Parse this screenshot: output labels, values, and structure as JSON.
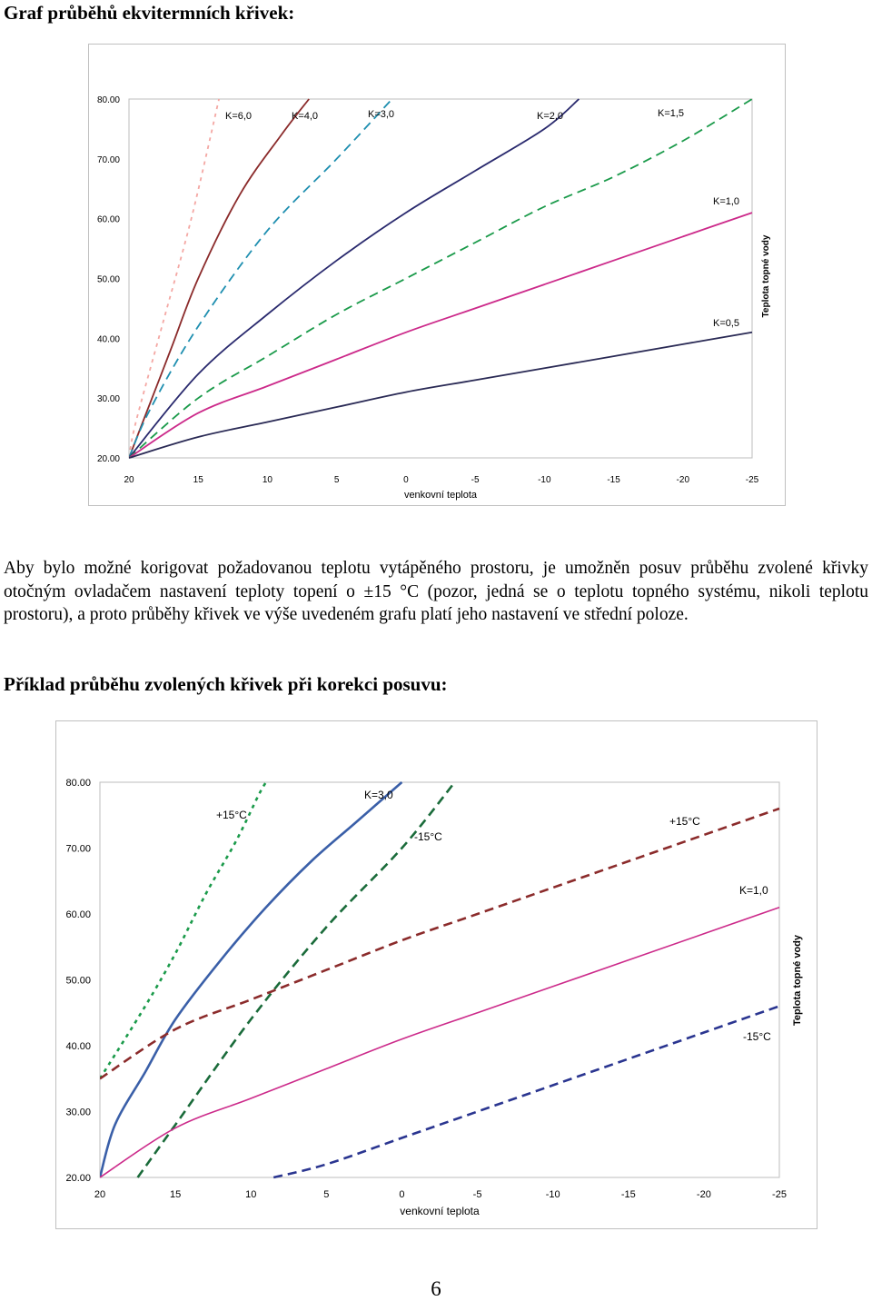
{
  "headings": {
    "chart1_title": "Graf průběhů ekvitermních křivek:",
    "chart2_title": "Příklad průběhu zvolených křivek při korekci posuvu:"
  },
  "paragraph": "Aby bylo možné korigovat požadovanou teplotu vytápěného prostoru, je umožněn posuv průběhu zvolené křivky otočným ovladačem nastavení teploty topení o ±15 °C (pozor, jedná se o teplotu topného systému, nikoli teplotu prostoru), a proto průběhy křivek ve výše uvedeném grafu platí jeho nastavení ve střední poloze.",
  "page_number": "6",
  "chart_data": [
    {
      "type": "line",
      "x": [
        20,
        15,
        10,
        5,
        0,
        -5,
        -10,
        -15,
        -20,
        -25
      ],
      "xlim": [
        20,
        -25
      ],
      "ylim": [
        20,
        80
      ],
      "y_ticks": [
        "20.00",
        "30.00",
        "40.00",
        "50.00",
        "60.00",
        "70.00",
        "80.00"
      ],
      "xlabel": "venkovní teplota",
      "ylabel": "Teplota topné vody",
      "grid": false,
      "series": [
        {
          "name": "K=6,0",
          "color": "#f4a7a3",
          "dash": "dotted",
          "points": [
            [
              20,
              20
            ],
            [
              19.5,
              26
            ],
            [
              17.5,
              43
            ],
            [
              15.5,
              60
            ],
            [
              13.5,
              80
            ]
          ]
        },
        {
          "name": "K=4,0",
          "color": "#8b2b2b",
          "dash": "solid",
          "points": [
            [
              20,
              20
            ],
            [
              19,
              26
            ],
            [
              17,
              38
            ],
            [
              15,
              50
            ],
            [
              12,
              64
            ],
            [
              9,
              74
            ],
            [
              7,
              80
            ]
          ]
        },
        {
          "name": "K=3,0",
          "color": "#1f8fb0",
          "dash": "dashed",
          "points": [
            [
              20,
              20
            ],
            [
              18.5,
              28
            ],
            [
              15,
              42
            ],
            [
              10,
              58
            ],
            [
              5,
              70
            ],
            [
              1,
              80
            ]
          ]
        },
        {
          "name": "K=2,0",
          "color": "#2a2a6e",
          "dash": "solid",
          "points": [
            [
              20,
              20
            ],
            [
              15,
              34
            ],
            [
              10,
              44
            ],
            [
              5,
              53
            ],
            [
              0,
              61
            ],
            [
              -5,
              68
            ],
            [
              -10,
              75
            ],
            [
              -12.5,
              80
            ]
          ]
        },
        {
          "name": "K=1,5",
          "color": "#1a9a4a",
          "dash": "dashed",
          "points": [
            [
              20,
              20
            ],
            [
              15,
              30
            ],
            [
              10,
              37
            ],
            [
              5,
              44
            ],
            [
              0,
              50
            ],
            [
              -5,
              56
            ],
            [
              -10,
              62
            ],
            [
              -15,
              67
            ],
            [
              -20,
              73
            ],
            [
              -25,
              80
            ]
          ]
        },
        {
          "name": "K=1,0",
          "color": "#cc2a8a",
          "dash": "solid",
          "points": [
            [
              20,
              20
            ],
            [
              15,
              27.5
            ],
            [
              10,
              32
            ],
            [
              5,
              36.5
            ],
            [
              0,
              41
            ],
            [
              -5,
              45
            ],
            [
              -10,
              49
            ],
            [
              -15,
              53
            ],
            [
              -20,
              57
            ],
            [
              -25,
              61
            ]
          ]
        },
        {
          "name": "K=0,5",
          "color": "#2a2a55",
          "dash": "solid",
          "points": [
            [
              20,
              20
            ],
            [
              15,
              23.5
            ],
            [
              10,
              26
            ],
            [
              5,
              28.5
            ],
            [
              0,
              31
            ],
            [
              -5,
              33
            ],
            [
              -10,
              35
            ],
            [
              -15,
              37
            ],
            [
              -20,
              39
            ],
            [
              -25,
              41
            ]
          ]
        }
      ]
    },
    {
      "type": "line",
      "x": [
        20,
        15,
        10,
        5,
        0,
        -5,
        -10,
        -15,
        -20,
        -25
      ],
      "xlim": [
        20,
        -25
      ],
      "ylim": [
        20,
        80
      ],
      "y_ticks": [
        "20.00",
        "30.00",
        "40.00",
        "50.00",
        "60.00",
        "70.00",
        "80.00"
      ],
      "xlabel": "venkovní teplota",
      "ylabel": "Teplota topné vody",
      "grid": false,
      "series": [
        {
          "name": "K=3,0",
          "color": "#3a5fa8",
          "dash": "solid",
          "width": 2.6,
          "points": [
            [
              20,
              20
            ],
            [
              19,
              28
            ],
            [
              17,
              36
            ],
            [
              15,
              44
            ],
            [
              12,
              53
            ],
            [
              9,
              61
            ],
            [
              6,
              68
            ],
            [
              3,
              74
            ],
            [
              0,
              80
            ]
          ]
        },
        {
          "name": "K=3,0 +15°C",
          "color": "#1a9a4a",
          "dash": "dotted",
          "width": 2.6,
          "points": [
            [
              20,
              35
            ],
            [
              17,
              46
            ],
            [
              15,
              54
            ],
            [
              13,
              63
            ],
            [
              11,
              71
            ],
            [
              9.5,
              78
            ],
            [
              9,
              80
            ]
          ]
        },
        {
          "name": "K=3,0 -15°C",
          "color": "#1a6b3a",
          "dash": "dashed",
          "width": 2.6,
          "points": [
            [
              17.5,
              20
            ],
            [
              15,
              28
            ],
            [
              10,
              44
            ],
            [
              5,
              58
            ],
            [
              0,
              70
            ],
            [
              -3.5,
              80
            ]
          ]
        },
        {
          "name": "K=1,0",
          "color": "#cc2a8a",
          "dash": "solid",
          "width": 1.6,
          "points": [
            [
              20,
              20
            ],
            [
              15,
              27.5
            ],
            [
              10,
              32
            ],
            [
              5,
              36.5
            ],
            [
              0,
              41
            ],
            [
              -5,
              45
            ],
            [
              -10,
              49
            ],
            [
              -15,
              53
            ],
            [
              -20,
              57
            ],
            [
              -25,
              61
            ]
          ]
        },
        {
          "name": "K=1,0 +15°C",
          "color": "#8b2b2b",
          "dash": "dashed",
          "width": 2.6,
          "points": [
            [
              20,
              35
            ],
            [
              15,
              42.5
            ],
            [
              10,
              47
            ],
            [
              5,
              51.5
            ],
            [
              0,
              56
            ],
            [
              -5,
              60
            ],
            [
              -10,
              64
            ],
            [
              -15,
              68
            ],
            [
              -20,
              72
            ],
            [
              -25,
              76
            ]
          ]
        },
        {
          "name": "K=1,0 -15°C",
          "color": "#2a3590",
          "dash": "dashed",
          "width": 2.6,
          "points": [
            [
              8.5,
              20
            ],
            [
              5,
              22
            ],
            [
              0,
              26
            ],
            [
              -5,
              30
            ],
            [
              -10,
              34
            ],
            [
              -15,
              38
            ],
            [
              -20,
              42
            ],
            [
              -25,
              46
            ]
          ]
        }
      ]
    }
  ],
  "chart_labels": [
    {
      "x_ticks": [
        "20",
        "15",
        "10",
        "5",
        "0",
        "-5",
        "-10",
        "-15",
        "-20",
        "-25"
      ],
      "annotations": [
        "K=6,0",
        "K=4,0",
        "K=3,0",
        "K=2,0",
        "K=1,5",
        "K=1,0",
        "K=0,5"
      ]
    },
    {
      "x_ticks": [
        "20",
        "15",
        "10",
        "5",
        "0",
        "-5",
        "-10",
        "-15",
        "-20",
        "-25"
      ],
      "annotations": [
        "K=3,0",
        "+15°C",
        "-15°C",
        "+15°C",
        "K=1,0",
        "-15°C"
      ]
    }
  ]
}
